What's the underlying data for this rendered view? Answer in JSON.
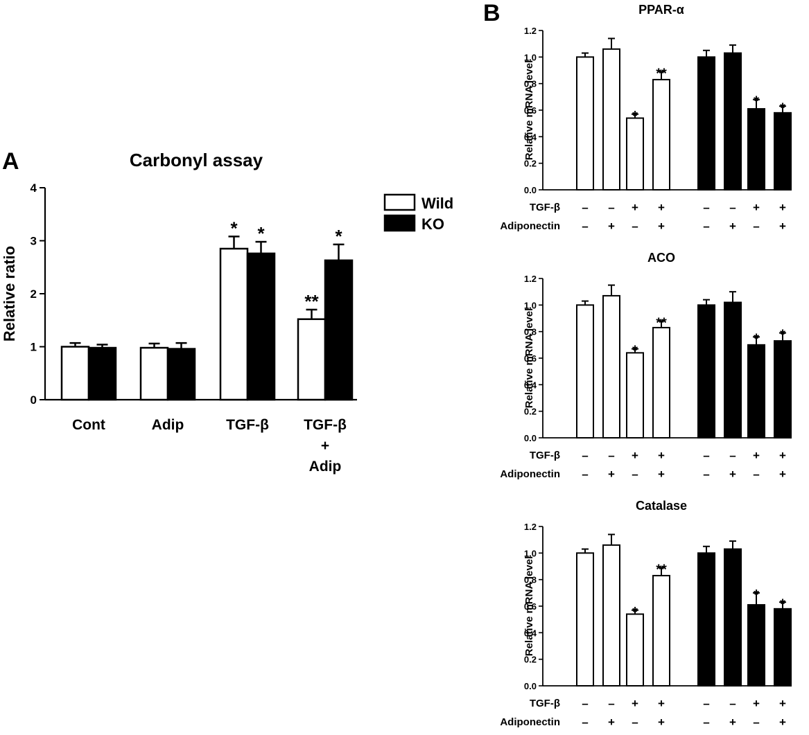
{
  "colors": {
    "wild": "#ffffff",
    "ko": "#000000",
    "stroke": "#000000"
  },
  "chart_data": [
    {
      "panel": "A",
      "type": "bar",
      "title": "Carbonyl assay",
      "ylabel": "Relative ratio",
      "xlabel": "",
      "ylim": [
        0,
        4
      ],
      "yticks": [
        "0",
        "1",
        "2",
        "3",
        "4"
      ],
      "categories": [
        [
          "Cont"
        ],
        [
          "Adip"
        ],
        [
          "TGF-β"
        ],
        [
          "TGF-β",
          "+",
          "Adip"
        ]
      ],
      "legend": {
        "placement": "right",
        "entries": [
          "Wild",
          "KO"
        ]
      },
      "series": [
        {
          "name": "Wild",
          "values": [
            1.0,
            0.98,
            2.85,
            1.52
          ],
          "errors": [
            0.07,
            0.08,
            0.23,
            0.18
          ],
          "annotations": [
            "",
            "",
            "*",
            "**"
          ]
        },
        {
          "name": "KO",
          "values": [
            0.98,
            0.96,
            2.76,
            2.63
          ],
          "errors": [
            0.06,
            0.11,
            0.22,
            0.3
          ],
          "annotations": [
            "",
            "",
            "*",
            "*"
          ]
        }
      ]
    },
    {
      "panel": "B",
      "type": "bar",
      "title": "PPAR-α",
      "ylabel": "Relative mRNA level",
      "ylim": [
        0,
        1.2
      ],
      "yticks": [
        "0.0",
        "0.2",
        "0.4",
        "0.6",
        "0.8",
        "1.0",
        "1.2"
      ],
      "conditions": {
        "TGF-β": [
          "–",
          "–",
          "+",
          "+",
          "–",
          "–",
          "+",
          "+"
        ],
        "Adiponectin": [
          "–",
          "+",
          "–",
          "+",
          "–",
          "+",
          "–",
          "+"
        ]
      },
      "groups": [
        "Wild",
        "Wild",
        "Wild",
        "Wild",
        "KO",
        "KO",
        "KO",
        "KO"
      ],
      "values": [
        1.0,
        1.06,
        0.54,
        0.83,
        1.0,
        1.03,
        0.61,
        0.58
      ],
      "errors": [
        0.03,
        0.08,
        0.03,
        0.06,
        0.05,
        0.06,
        0.07,
        0.05
      ],
      "annotations": [
        "",
        "",
        "*",
        "**",
        "",
        "",
        "*",
        "*"
      ]
    },
    {
      "type": "bar",
      "title": "ACO",
      "ylabel": "Relative mRNA level",
      "ylim": [
        0,
        1.2
      ],
      "yticks": [
        "0.0",
        "0.2",
        "0.4",
        "0.6",
        "0.8",
        "1.0",
        "1.2"
      ],
      "conditions": {
        "TGF-β": [
          "–",
          "–",
          "+",
          "+",
          "–",
          "–",
          "+",
          "+"
        ],
        "Adiponectin": [
          "–",
          "+",
          "–",
          "+",
          "–",
          "+",
          "–",
          "+"
        ]
      },
      "groups": [
        "Wild",
        "Wild",
        "Wild",
        "Wild",
        "KO",
        "KO",
        "KO",
        "KO"
      ],
      "values": [
        1.0,
        1.07,
        0.64,
        0.83,
        1.0,
        1.02,
        0.7,
        0.73
      ],
      "errors": [
        0.03,
        0.08,
        0.03,
        0.05,
        0.04,
        0.08,
        0.06,
        0.06
      ],
      "annotations": [
        "",
        "",
        "*",
        "**",
        "",
        "",
        "*",
        "*"
      ]
    },
    {
      "type": "bar",
      "title": "Catalase",
      "ylabel": "Relative mRNA level",
      "ylim": [
        0,
        1.2
      ],
      "yticks": [
        "0.0",
        "0.2",
        "0.4",
        "0.6",
        "0.8",
        "1.0",
        "1.2"
      ],
      "conditions": {
        "TGF-β": [
          "–",
          "–",
          "+",
          "+",
          "–",
          "–",
          "+",
          "+"
        ],
        "Adiponectin": [
          "–",
          "+",
          "–",
          "+",
          "–",
          "+",
          "–",
          "+"
        ]
      },
      "groups": [
        "Wild",
        "Wild",
        "Wild",
        "Wild",
        "KO",
        "KO",
        "KO",
        "KO"
      ],
      "values": [
        1.0,
        1.06,
        0.54,
        0.83,
        1.0,
        1.03,
        0.61,
        0.58
      ],
      "errors": [
        0.03,
        0.08,
        0.03,
        0.06,
        0.05,
        0.06,
        0.09,
        0.05
      ],
      "annotations": [
        "",
        "",
        "*",
        "**",
        "",
        "",
        "*",
        "*"
      ]
    }
  ]
}
